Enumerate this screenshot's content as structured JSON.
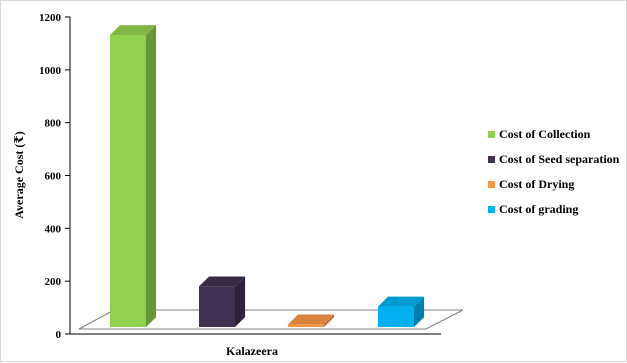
{
  "chart_data": {
    "type": "bar",
    "title": "",
    "xlabel": "Kalazeera",
    "ylabel": "Average Cost (₹)",
    "ylim": [
      0,
      1200
    ],
    "yticks": [
      0,
      200,
      400,
      600,
      800,
      1000,
      1200
    ],
    "grid": false,
    "legend_position": "right",
    "categories": [
      "Kalazeera"
    ],
    "series": [
      {
        "name": "Cost of Collection",
        "values": [
          1115
        ],
        "color": "#92D050"
      },
      {
        "name": "Cost of Seed separation",
        "values": [
          155
        ],
        "color": "#403152"
      },
      {
        "name": "Cost of Drying",
        "values": [
          10
        ],
        "color": "#F79646"
      },
      {
        "name": "Cost of grading",
        "values": [
          78
        ],
        "color": "#00B0F0"
      }
    ]
  }
}
